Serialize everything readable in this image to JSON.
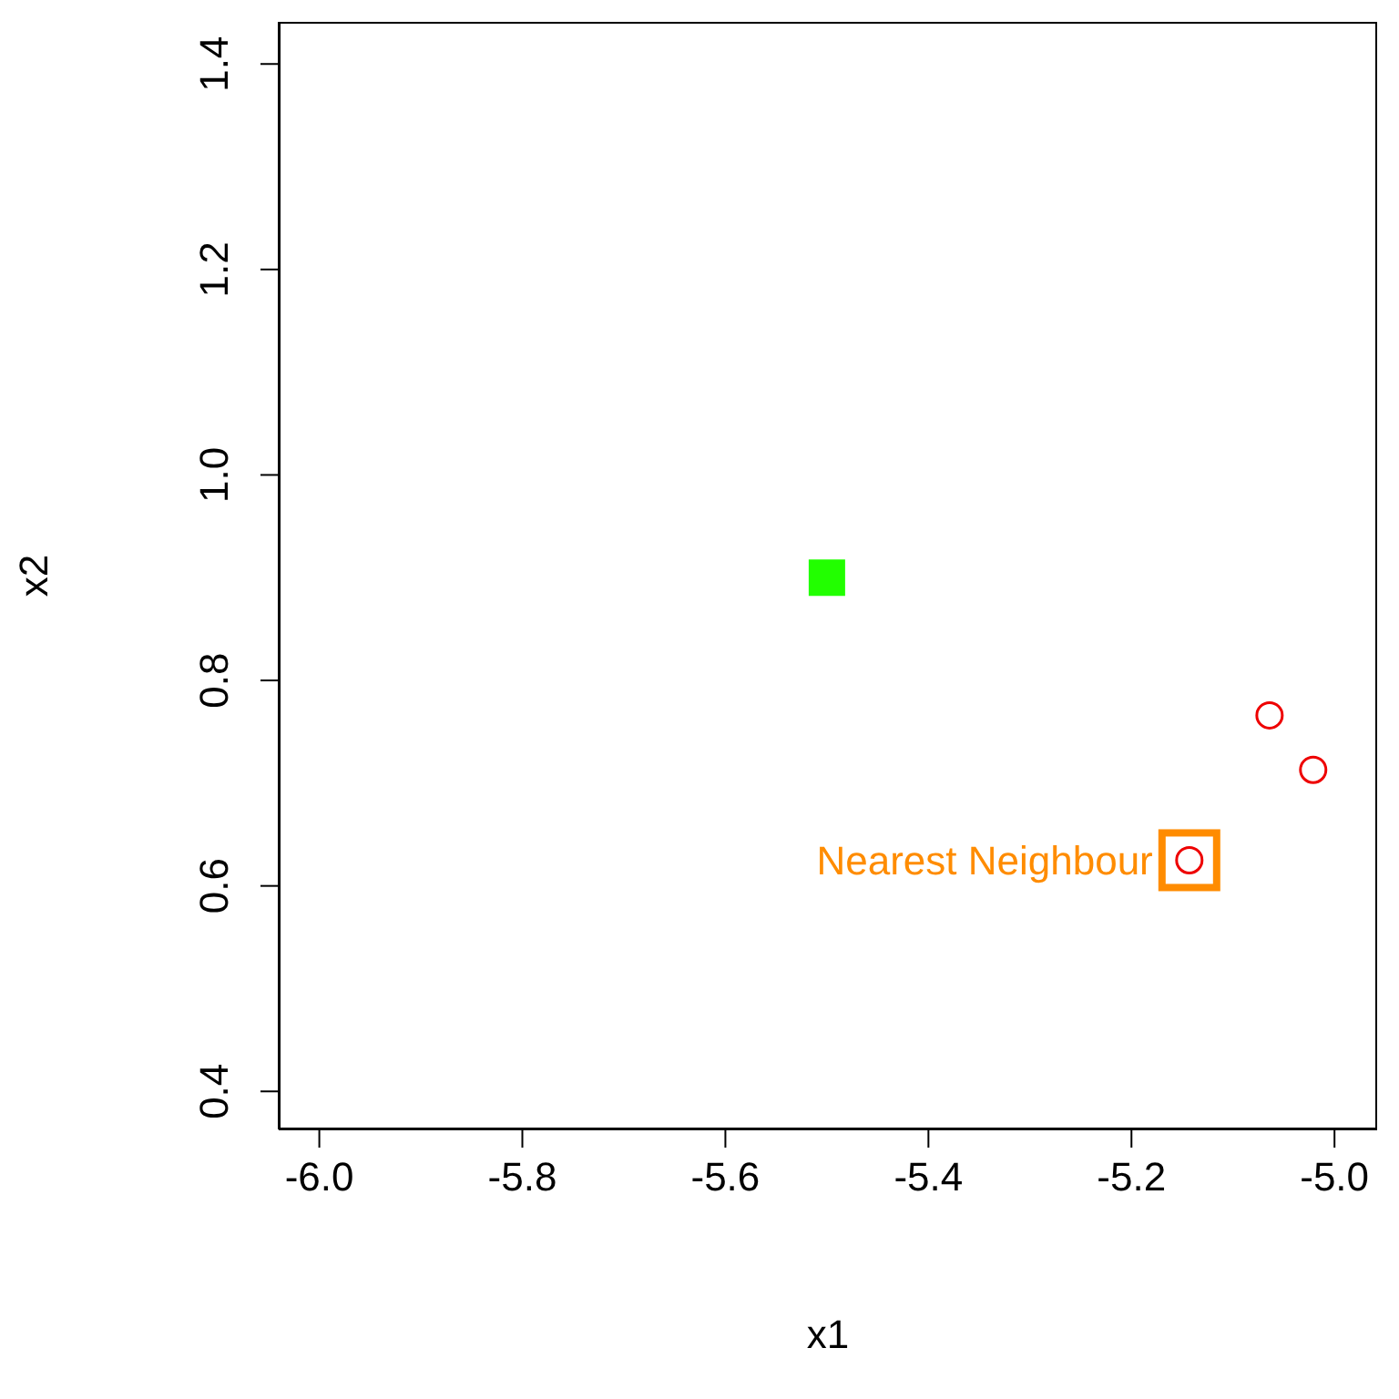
{
  "chart_data": {
    "type": "scatter",
    "xlabel": "x1",
    "ylabel": "x2",
    "xlim": [
      -6.04,
      -4.958
    ],
    "ylim": [
      0.363,
      1.441
    ],
    "xticks": [
      {
        "value": -6,
        "label": "-6.0"
      },
      -5.8,
      -5.6,
      -5.4,
      -5.2,
      {
        "value": -5,
        "label": "-5.0"
      }
    ],
    "yticks": [
      0.4,
      0.6,
      0.8,
      {
        "value": 1,
        "label": "1.0"
      },
      1.2,
      1.4
    ],
    "series": [
      {
        "color": "#22ff00",
        "marker": "square",
        "x": [
          -5.5
        ],
        "values": [
          0.9
        ]
      },
      {
        "color": "#ee0000",
        "marker": "circle",
        "x": [
          -5.143,
          -5.064,
          -5.021
        ],
        "values": [
          0.625,
          0.766,
          0.713
        ]
      }
    ],
    "annotations": [
      {
        "text": "Nearest Neighbour",
        "x": -5.143,
        "y": 0.625
      }
    ]
  }
}
